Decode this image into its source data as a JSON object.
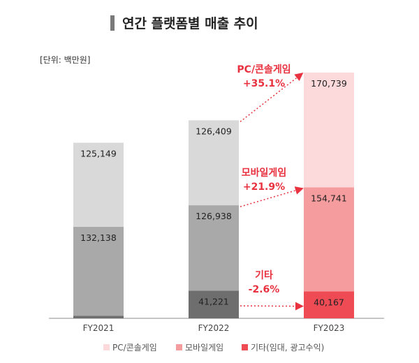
{
  "chart_data": {
    "type": "bar",
    "stacked": true,
    "title": "연간 플랫폼별 매출 추이",
    "unit_label": "[단위: 백만원]",
    "categories": [
      "FY2021",
      "FY2022",
      "FY2023"
    ],
    "series": [
      {
        "name": "기타(임대, 광고수익)",
        "values": [
          3913,
          41221,
          40167
        ],
        "labels": [
          "3,913",
          "41,221",
          "40,167"
        ],
        "colors": [
          "#6e6e6e",
          "#6e6e6e",
          "#ee4b55"
        ]
      },
      {
        "name": "모바일게임",
        "values": [
          132138,
          126938,
          154741
        ],
        "labels": [
          "132,138",
          "126,938",
          "154,741"
        ],
        "colors": [
          "#a9a9a9",
          "#a9a9a9",
          "#f59c9f"
        ]
      },
      {
        "name": "PC/콘솔게임",
        "values": [
          125149,
          126409,
          170739
        ],
        "labels": [
          "125,149",
          "126,409",
          "170,739"
        ],
        "colors": [
          "#d9d9d9",
          "#d9d9d9",
          "#fcd9db"
        ]
      }
    ],
    "annotations": [
      {
        "series": "PC/콘솔게임",
        "line1": "PC/콘솔게임",
        "line2": "+35.1%"
      },
      {
        "series": "모바일게임",
        "line1": "모바일게임",
        "line2": "+21.9%"
      },
      {
        "series": "기타",
        "line1": "기타",
        "line2": "-2.6%"
      }
    ],
    "legend": [
      {
        "label": "PC/콘솔게임",
        "color": "#fcd9db"
      },
      {
        "label": "모바일게임",
        "color": "#f59c9f"
      },
      {
        "label": "기타(임대, 광고수익)",
        "color": "#ee4b55"
      }
    ],
    "accent_color": "#e8323f",
    "legend_position": "bottom",
    "grid": false
  }
}
